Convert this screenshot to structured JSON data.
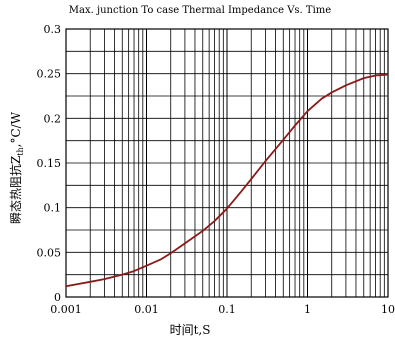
{
  "chart_data": {
    "type": "line",
    "title": "Max. junction To case Thermal Impedance Vs. Time",
    "xlabel": "时间t,S",
    "ylabel": "瞬态热阻抗Z",
    "ylabel_sub": "th",
    "ylabel_unit": ",°C/W",
    "x_scale": "log",
    "xlim": [
      0.001,
      10
    ],
    "ylim": [
      0,
      0.3
    ],
    "grid": true,
    "x_ticks": [
      {
        "value": 0.001,
        "label": "0.001"
      },
      {
        "value": 0.01,
        "label": "0.01"
      },
      {
        "value": 0.1,
        "label": "0.1"
      },
      {
        "value": 1,
        "label": "1"
      },
      {
        "value": 10,
        "label": "10"
      }
    ],
    "y_ticks": [
      {
        "value": 0,
        "label": "0"
      },
      {
        "value": 0.05,
        "label": "0.05"
      },
      {
        "value": 0.1,
        "label": "0.1"
      },
      {
        "value": 0.15,
        "label": "0.15"
      },
      {
        "value": 0.2,
        "label": "0.2"
      },
      {
        "value": 0.25,
        "label": "0.25"
      },
      {
        "value": 0.3,
        "label": "0.3"
      }
    ],
    "series": [
      {
        "color": "#8b1a1a",
        "x": [
          0.001,
          0.002,
          0.003,
          0.005,
          0.007,
          0.01,
          0.015,
          0.02,
          0.03,
          0.05,
          0.07,
          0.1,
          0.15,
          0.2,
          0.3,
          0.5,
          0.7,
          1,
          1.5,
          2,
          3,
          5,
          7,
          10
        ],
        "y": [
          0.012,
          0.017,
          0.02,
          0.025,
          0.029,
          0.035,
          0.042,
          0.049,
          0.06,
          0.074,
          0.085,
          0.099,
          0.118,
          0.132,
          0.152,
          0.176,
          0.192,
          0.208,
          0.222,
          0.229,
          0.237,
          0.245,
          0.248,
          0.249
        ]
      }
    ]
  }
}
